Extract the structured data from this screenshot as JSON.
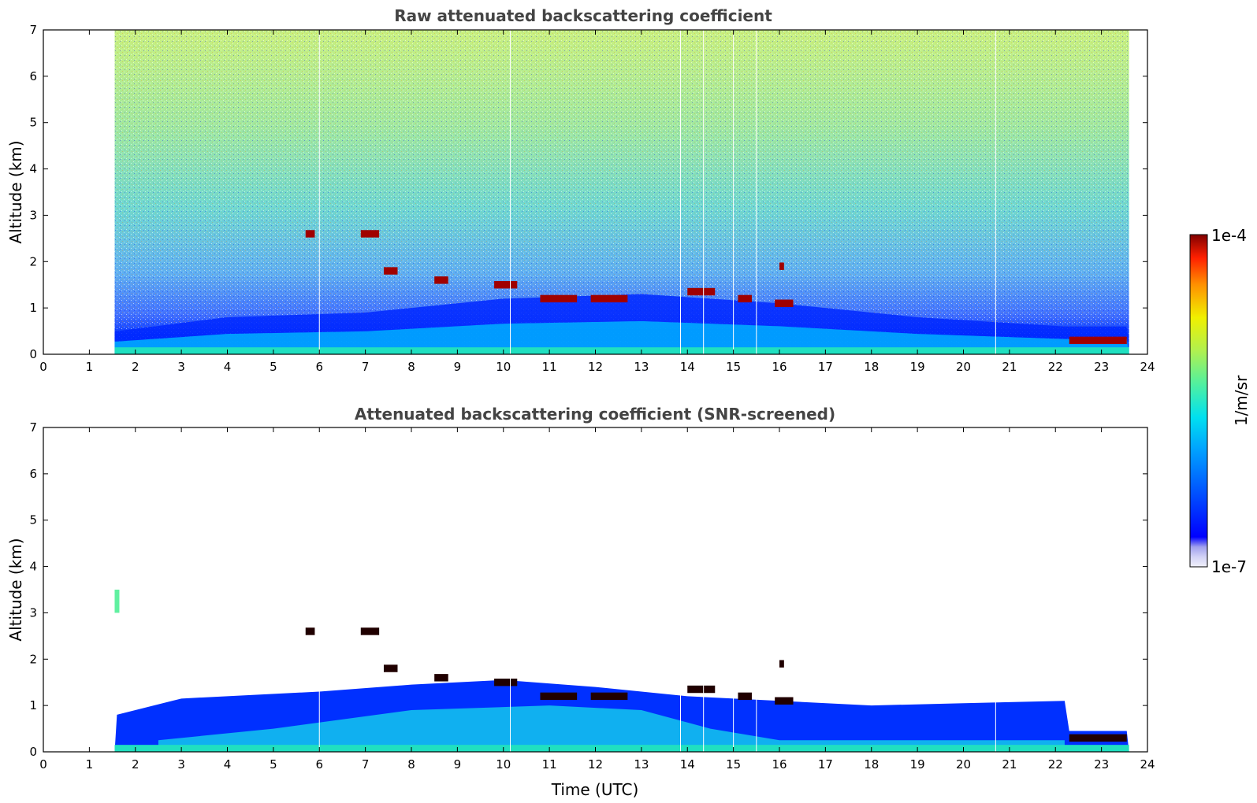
{
  "chart_data": [
    {
      "type": "heatmap",
      "title": "Raw attenuated backscattering coefficient",
      "xlabel": "",
      "ylabel": "Altitude (km)",
      "xlim": [
        0,
        24
      ],
      "ylim": [
        0,
        7
      ],
      "x_ticks": [
        "0",
        "1",
        "2",
        "3",
        "4",
        "5",
        "6",
        "7",
        "8",
        "9",
        "10",
        "11",
        "12",
        "13",
        "14",
        "15",
        "16",
        "17",
        "18",
        "19",
        "20",
        "21",
        "22",
        "23",
        "24"
      ],
      "y_ticks": [
        "0",
        "1",
        "2",
        "3",
        "4",
        "5",
        "6",
        "7"
      ],
      "data_extent_hours": [
        1.55,
        23.6
      ],
      "boundary_layer_top_km": [
        [
          1.6,
          0.5
        ],
        [
          4,
          0.8
        ],
        [
          7,
          0.9
        ],
        [
          10,
          1.2
        ],
        [
          13,
          1.3
        ],
        [
          16,
          1.1
        ],
        [
          19,
          0.8
        ],
        [
          22.2,
          0.6
        ]
      ],
      "cloud_layers": [
        {
          "t": [
            5.7,
            5.9
          ],
          "alt_km": 2.6
        },
        {
          "t": [
            6.9,
            7.3
          ],
          "alt_km": 2.6
        },
        {
          "t": [
            7.4,
            7.7
          ],
          "alt_km": 1.8
        },
        {
          "t": [
            8.5,
            8.8
          ],
          "alt_km": 1.6
        },
        {
          "t": [
            9.8,
            10.3
          ],
          "alt_km": 1.5
        },
        {
          "t": [
            10.8,
            11.6
          ],
          "alt_km": 1.2
        },
        {
          "t": [
            11.9,
            12.7
          ],
          "alt_km": 1.2
        },
        {
          "t": [
            14.0,
            14.6
          ],
          "alt_km": 1.35
        },
        {
          "t": [
            15.1,
            15.4
          ],
          "alt_km": 1.2
        },
        {
          "t": [
            15.9,
            16.3
          ],
          "alt_km": 1.1
        },
        {
          "t": [
            16.0,
            16.1
          ],
          "alt_km": 1.9
        },
        {
          "t": [
            22.3,
            23.55
          ],
          "alt_km": 0.3
        }
      ],
      "data_gaps_hours": [
        6.0,
        10.15,
        13.85,
        14.35,
        15.0,
        15.5,
        20.7
      ]
    },
    {
      "type": "heatmap",
      "title": "Attenuated backscattering coefficient (SNR-screened)",
      "xlabel": "Time (UTC)",
      "ylabel": "Altitude (km)",
      "xlim": [
        0,
        24
      ],
      "ylim": [
        0,
        7
      ],
      "x_ticks": [
        "0",
        "1",
        "2",
        "3",
        "4",
        "5",
        "6",
        "7",
        "8",
        "9",
        "10",
        "11",
        "12",
        "13",
        "14",
        "15",
        "16",
        "17",
        "18",
        "19",
        "20",
        "21",
        "22",
        "23",
        "24"
      ],
      "y_ticks": [
        "0",
        "1",
        "2",
        "3",
        "4",
        "5",
        "6",
        "7"
      ],
      "data_extent_hours": [
        1.55,
        23.6
      ],
      "screened_top_km": [
        [
          1.6,
          0.8
        ],
        [
          3,
          1.15
        ],
        [
          6,
          1.3
        ],
        [
          8,
          1.45
        ],
        [
          10,
          1.55
        ],
        [
          12,
          1.4
        ],
        [
          14,
          1.2
        ],
        [
          16,
          1.1
        ],
        [
          18,
          1.0
        ],
        [
          20,
          1.05
        ],
        [
          22.2,
          1.1
        ],
        [
          22.3,
          0.45
        ],
        [
          23.55,
          0.45
        ]
      ]
    }
  ],
  "colorbar": {
    "label": "1/m/sr",
    "max_label": "1e-4",
    "min_label": "1e-7",
    "colors": [
      "#f0f0fa",
      "#d2d2f5",
      "#b4b4f0",
      "#9696eb",
      "#0000ff",
      "#0040ff",
      "#0080ff",
      "#00b4ff",
      "#00e0f0",
      "#40f0b0",
      "#80f070",
      "#c0f040",
      "#f0f000",
      "#ffc000",
      "#ff8000",
      "#ff4000",
      "#e01000",
      "#a00000",
      "#800000"
    ]
  }
}
